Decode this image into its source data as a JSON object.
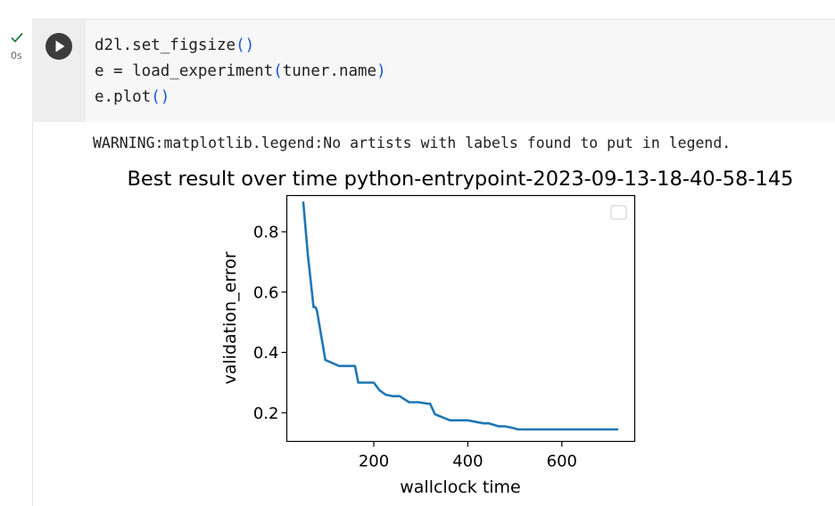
{
  "cell": {
    "status_time": "0s",
    "status_icon": "checkmark-icon",
    "run_icon": "play-icon",
    "code_lines": [
      {
        "name": "d2l",
        "dot": ".",
        "func": "set_figsize",
        "open": "(",
        "args": "",
        "close": ")"
      },
      {
        "name": "e = load_experiment",
        "dot": "",
        "func": "",
        "open": "(",
        "args": "tuner.name",
        "close": ")"
      },
      {
        "name": "e",
        "dot": ".",
        "func": "plot",
        "open": "(",
        "args": "",
        "close": ")"
      }
    ]
  },
  "output": {
    "warning": "WARNING:matplotlib.legend:No artists with labels found to put in legend."
  },
  "chart_data": {
    "type": "line",
    "title": "Best result over time python-entrypoint-2023-09-13-18-40-58-145",
    "xlabel": "wallclock time",
    "ylabel": "validation_error",
    "xlim": [
      15,
      755
    ],
    "ylim": [
      0.105,
      0.92
    ],
    "xticks": [
      {
        "v": 200,
        "label": "200"
      },
      {
        "v": 400,
        "label": "400"
      },
      {
        "v": 600,
        "label": "600"
      }
    ],
    "yticks": [
      {
        "v": 0.2,
        "label": "0.2"
      },
      {
        "v": 0.4,
        "label": "0.4"
      },
      {
        "v": 0.6,
        "label": "0.6"
      },
      {
        "v": 0.8,
        "label": "0.8"
      }
    ],
    "grid": false,
    "legend": "top-right (empty)",
    "line_color": "#1f77b4",
    "series": [
      {
        "x": [
          50,
          60,
          72,
          76,
          79,
          97,
          126,
          160,
          167,
          200,
          212,
          225,
          240,
          255,
          275,
          295,
          315,
          320,
          330,
          362,
          400,
          433,
          445,
          466,
          480,
          495,
          506,
          720
        ],
        "y": [
          0.9,
          0.72,
          0.55,
          0.55,
          0.54,
          0.375,
          0.355,
          0.355,
          0.3,
          0.3,
          0.275,
          0.26,
          0.255,
          0.255,
          0.235,
          0.235,
          0.23,
          0.23,
          0.195,
          0.175,
          0.175,
          0.165,
          0.165,
          0.155,
          0.155,
          0.15,
          0.145,
          0.145
        ]
      }
    ]
  }
}
